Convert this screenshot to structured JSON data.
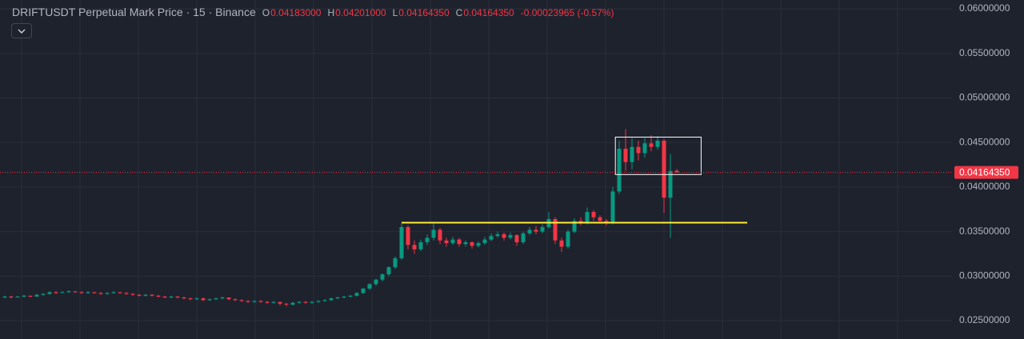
{
  "chart_data": {
    "type": "candlestick",
    "title": "DRIFTUSDT Perpetual Mark Price · 15 · Binance",
    "legend": [
      {
        "key": "O",
        "value": "0.04183000"
      },
      {
        "key": "H",
        "value": "0.04201000"
      },
      {
        "key": "L",
        "value": "0.04164350"
      },
      {
        "key": "C",
        "value": "0.04164350"
      }
    ],
    "change": "-0.00023965 (-0.57%)",
    "up_color": "#089981",
    "down_color": "#f23645",
    "grid": true,
    "ylim": [
      0.02294,
      0.06099
    ],
    "yticks": [
      {
        "value": 0.025,
        "label": "0.02500000"
      },
      {
        "value": 0.03,
        "label": "0.03000000"
      },
      {
        "value": 0.035,
        "label": "0.03500000"
      },
      {
        "value": 0.04,
        "label": "0.04000000"
      },
      {
        "value": 0.045,
        "label": "0.04500000"
      },
      {
        "value": 0.05,
        "label": "0.05000000"
      },
      {
        "value": 0.055,
        "label": "0.05500000"
      },
      {
        "value": 0.06,
        "label": "0.06000000"
      }
    ],
    "last_price": {
      "value": 0.0416435,
      "label": "0.04164350"
    },
    "hline": {
      "value": 0.036,
      "from": 62,
      "to": 116,
      "color": "#ffeb3b"
    },
    "box": {
      "top": 0.0456,
      "bottom": 0.0414,
      "from": 95.4,
      "to": 108.8,
      "color": "#ffffff"
    },
    "candles": [
      [
        0.0276,
        0.0278,
        0.0275,
        0.0277
      ],
      [
        0.0277,
        0.0278,
        0.0275,
        0.0276
      ],
      [
        0.0276,
        0.0278,
        0.0276,
        0.0277
      ],
      [
        0.0277,
        0.0279,
        0.0276,
        0.0278
      ],
      [
        0.0278,
        0.0278,
        0.0276,
        0.0277
      ],
      [
        0.0277,
        0.028,
        0.0277,
        0.0279
      ],
      [
        0.0279,
        0.0281,
        0.0278,
        0.028
      ],
      [
        0.028,
        0.0283,
        0.0279,
        0.0282
      ],
      [
        0.0282,
        0.0283,
        0.028,
        0.0281
      ],
      [
        0.0281,
        0.0283,
        0.0281,
        0.0282
      ],
      [
        0.0282,
        0.0284,
        0.0281,
        0.0283
      ],
      [
        0.0283,
        0.0283,
        0.0281,
        0.0282
      ],
      [
        0.0282,
        0.0283,
        0.028,
        0.0281
      ],
      [
        0.0281,
        0.0283,
        0.028,
        0.0282
      ],
      [
        0.0282,
        0.0282,
        0.028,
        0.0281
      ],
      [
        0.0281,
        0.0282,
        0.0279,
        0.028
      ],
      [
        0.028,
        0.0282,
        0.0279,
        0.0281
      ],
      [
        0.0281,
        0.0283,
        0.028,
        0.0282
      ],
      [
        0.0282,
        0.0282,
        0.028,
        0.0281
      ],
      [
        0.0281,
        0.0282,
        0.0279,
        0.028
      ],
      [
        0.028,
        0.0281,
        0.0278,
        0.0279
      ],
      [
        0.0279,
        0.028,
        0.0277,
        0.0278
      ],
      [
        0.0278,
        0.028,
        0.0277,
        0.0279
      ],
      [
        0.0279,
        0.028,
        0.0277,
        0.0278
      ],
      [
        0.0278,
        0.0279,
        0.0276,
        0.0277
      ],
      [
        0.0277,
        0.0278,
        0.0275,
        0.0276
      ],
      [
        0.0276,
        0.0278,
        0.0275,
        0.0277
      ],
      [
        0.0277,
        0.0278,
        0.0275,
        0.0276
      ],
      [
        0.0276,
        0.0277,
        0.0274,
        0.0275
      ],
      [
        0.0275,
        0.0276,
        0.0273,
        0.0274
      ],
      [
        0.0274,
        0.0276,
        0.0273,
        0.0275
      ],
      [
        0.0275,
        0.0276,
        0.0272,
        0.0273
      ],
      [
        0.0273,
        0.0275,
        0.0272,
        0.0274
      ],
      [
        0.0274,
        0.0276,
        0.0273,
        0.0275
      ],
      [
        0.0275,
        0.0277,
        0.0274,
        0.0276
      ],
      [
        0.0276,
        0.0276,
        0.0273,
        0.0274
      ],
      [
        0.0274,
        0.0275,
        0.0272,
        0.0273
      ],
      [
        0.0273,
        0.0274,
        0.0271,
        0.0272
      ],
      [
        0.0272,
        0.0273,
        0.027,
        0.0271
      ],
      [
        0.0271,
        0.0273,
        0.027,
        0.0272
      ],
      [
        0.0272,
        0.0273,
        0.027,
        0.0271
      ],
      [
        0.0271,
        0.0272,
        0.0269,
        0.027
      ],
      [
        0.027,
        0.0272,
        0.0269,
        0.0271
      ],
      [
        0.0271,
        0.0271,
        0.0267,
        0.0269
      ],
      [
        0.0269,
        0.027,
        0.0266,
        0.0268
      ],
      [
        0.0268,
        0.0271,
        0.0267,
        0.027
      ],
      [
        0.027,
        0.0272,
        0.0269,
        0.0271
      ],
      [
        0.0271,
        0.0272,
        0.0269,
        0.027
      ],
      [
        0.027,
        0.0272,
        0.0269,
        0.0271
      ],
      [
        0.0271,
        0.0273,
        0.027,
        0.0272
      ],
      [
        0.0272,
        0.0274,
        0.0271,
        0.0273
      ],
      [
        0.0273,
        0.0276,
        0.0272,
        0.0275
      ],
      [
        0.0275,
        0.0277,
        0.0274,
        0.0276
      ],
      [
        0.0276,
        0.0278,
        0.0275,
        0.0277
      ],
      [
        0.0277,
        0.0279,
        0.0276,
        0.0278
      ],
      [
        0.0278,
        0.0282,
        0.0277,
        0.0281
      ],
      [
        0.0281,
        0.0287,
        0.028,
        0.0286
      ],
      [
        0.0286,
        0.0292,
        0.0284,
        0.0291
      ],
      [
        0.0291,
        0.0297,
        0.0289,
        0.0296
      ],
      [
        0.0296,
        0.0303,
        0.0294,
        0.0302
      ],
      [
        0.0302,
        0.0311,
        0.03,
        0.031
      ],
      [
        0.031,
        0.0322,
        0.0308,
        0.032
      ],
      [
        0.032,
        0.0359,
        0.0318,
        0.0355
      ],
      [
        0.0355,
        0.0357,
        0.033,
        0.0335
      ],
      [
        0.0335,
        0.034,
        0.0325,
        0.033
      ],
      [
        0.033,
        0.0341,
        0.0328,
        0.0338
      ],
      [
        0.0338,
        0.0347,
        0.0335,
        0.0343
      ],
      [
        0.0343,
        0.0359,
        0.034,
        0.0352
      ],
      [
        0.0352,
        0.0354,
        0.0336,
        0.034
      ],
      [
        0.034,
        0.0343,
        0.0333,
        0.0337
      ],
      [
        0.0337,
        0.0344,
        0.0335,
        0.0341
      ],
      [
        0.0341,
        0.0343,
        0.0333,
        0.0336
      ],
      [
        0.0336,
        0.034,
        0.0333,
        0.0338
      ],
      [
        0.0338,
        0.0339,
        0.0331,
        0.0334
      ],
      [
        0.0334,
        0.0339,
        0.0332,
        0.0337
      ],
      [
        0.0337,
        0.0344,
        0.0335,
        0.0341
      ],
      [
        0.0341,
        0.0348,
        0.0339,
        0.0345
      ],
      [
        0.0345,
        0.035,
        0.0343,
        0.0347
      ],
      [
        0.0347,
        0.0349,
        0.034,
        0.0343
      ],
      [
        0.0343,
        0.0349,
        0.0341,
        0.0346
      ],
      [
        0.0346,
        0.0347,
        0.0334,
        0.0338
      ],
      [
        0.0338,
        0.035,
        0.0336,
        0.0348
      ],
      [
        0.0348,
        0.0355,
        0.0346,
        0.0352
      ],
      [
        0.0352,
        0.0356,
        0.0347,
        0.035
      ],
      [
        0.035,
        0.0358,
        0.0348,
        0.0355
      ],
      [
        0.0355,
        0.0372,
        0.0353,
        0.0364
      ],
      [
        0.0364,
        0.0366,
        0.0336,
        0.034
      ],
      [
        0.034,
        0.0343,
        0.0327,
        0.0333
      ],
      [
        0.0333,
        0.0352,
        0.0331,
        0.035
      ],
      [
        0.035,
        0.0365,
        0.0348,
        0.0362
      ],
      [
        0.0362,
        0.0366,
        0.0357,
        0.036
      ],
      [
        0.036,
        0.0377,
        0.0358,
        0.0372
      ],
      [
        0.0372,
        0.0374,
        0.0362,
        0.0366
      ],
      [
        0.0366,
        0.0368,
        0.0359,
        0.0362
      ],
      [
        0.0362,
        0.0364,
        0.0357,
        0.036
      ],
      [
        0.036,
        0.04,
        0.0358,
        0.0395
      ],
      [
        0.0395,
        0.0452,
        0.0392,
        0.0443
      ],
      [
        0.0443,
        0.0465,
        0.0418,
        0.0428
      ],
      [
        0.0428,
        0.0455,
        0.042,
        0.0445
      ],
      [
        0.0445,
        0.0452,
        0.043,
        0.0438
      ],
      [
        0.0438,
        0.0455,
        0.0433,
        0.0449
      ],
      [
        0.0449,
        0.0458,
        0.044,
        0.0445
      ],
      [
        0.0445,
        0.0457,
        0.0442,
        0.0452
      ],
      [
        0.0452,
        0.0454,
        0.0371,
        0.0388
      ],
      [
        0.0388,
        0.0437,
        0.0343,
        0.0418
      ],
      [
        0.04183,
        0.04201,
        0.0416435,
        0.0416435
      ]
    ]
  }
}
